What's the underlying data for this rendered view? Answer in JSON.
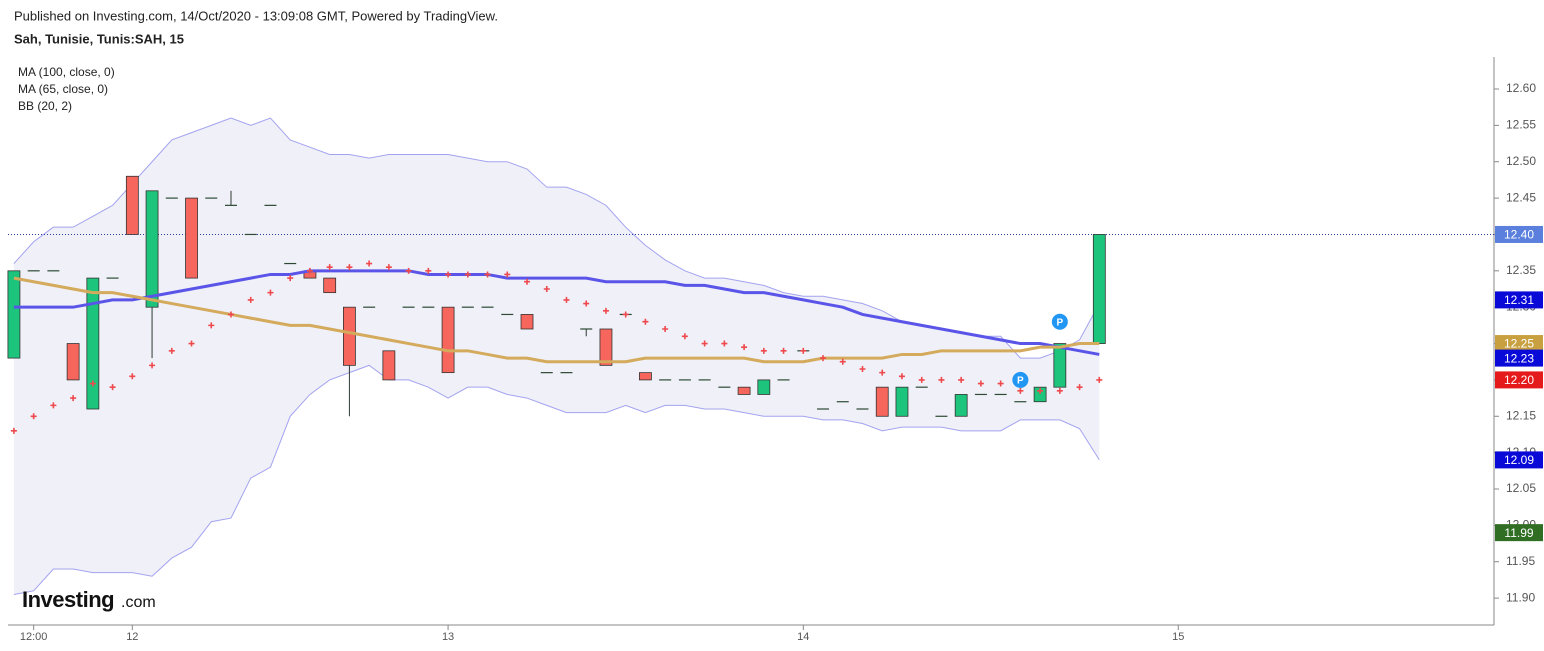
{
  "header": {
    "published": "Published on Investing.com, 14/Oct/2020 - 13:09:08 GMT, Powered by TradingView.",
    "symbol": "Sah, Tunisie, Tunis:SAH, 15"
  },
  "logo": {
    "brand": "Investing",
    "suffix": ".com"
  },
  "chart_data": {
    "type": "candlestick",
    "xlim": [
      -0.3,
      75.0
    ],
    "xticks": [
      {
        "value": 1,
        "label": "12:00"
      },
      {
        "value": 6,
        "label": "12"
      },
      {
        "value": 22,
        "label": "13"
      },
      {
        "value": 40,
        "label": "14"
      },
      {
        "value": 59,
        "label": "15"
      }
    ],
    "ylim": [
      11.863,
      12.644
    ],
    "yticks": [
      {
        "value": 11.9,
        "label": "11.90"
      },
      11.95,
      {
        "value": 12.0,
        "label": "12.00"
      },
      12.05,
      {
        "value": 12.1,
        "label": "12.10"
      },
      12.15,
      {
        "value": 12.2,
        "label": "12.20"
      },
      12.25,
      {
        "value": 12.3,
        "label": "12.30"
      },
      12.35,
      {
        "value": 12.4,
        "label": "12.40"
      },
      12.45,
      {
        "value": 12.5,
        "label": "12.50"
      },
      12.55,
      {
        "value": 12.6,
        "label": "12.60"
      }
    ],
    "candles": {
      "up_color": "#1dc47c",
      "down_color": "#f7665c",
      "flat_color": "#2c4a34",
      "open": [
        12.23,
        12.35,
        12.35,
        12.25,
        12.16,
        12.34,
        12.48,
        12.3,
        12.45,
        12.45,
        12.45,
        12.44,
        12.4,
        12.44,
        12.36,
        12.35,
        12.34,
        12.3,
        12.3,
        12.24,
        12.3,
        12.3,
        12.3,
        12.3,
        12.3,
        12.29,
        12.29,
        12.21,
        12.21,
        12.27,
        12.27,
        12.29,
        12.21,
        12.2,
        12.2,
        12.2,
        12.19,
        12.19,
        12.18,
        12.2,
        12.24,
        12.16,
        12.17,
        12.16,
        12.19,
        12.15,
        12.19,
        12.15,
        12.15,
        12.18,
        12.18,
        12.17,
        12.17,
        12.19,
        12.25,
        12.25
      ],
      "high": [
        12.35,
        12.35,
        12.35,
        12.25,
        12.34,
        12.34,
        12.48,
        12.46,
        12.45,
        12.45,
        12.45,
        12.46,
        12.4,
        12.44,
        12.36,
        12.35,
        12.34,
        12.3,
        12.3,
        12.24,
        12.3,
        12.3,
        12.3,
        12.3,
        12.3,
        12.29,
        12.29,
        12.21,
        12.21,
        12.27,
        12.27,
        12.29,
        12.21,
        12.2,
        12.2,
        12.2,
        12.19,
        12.19,
        12.2,
        12.2,
        12.24,
        12.16,
        12.17,
        12.16,
        12.19,
        12.19,
        12.19,
        12.15,
        12.18,
        12.18,
        12.18,
        12.17,
        12.19,
        12.25,
        12.25,
        12.4
      ],
      "low": [
        12.23,
        12.35,
        12.35,
        12.2,
        12.16,
        12.34,
        12.4,
        12.23,
        12.45,
        12.34,
        12.45,
        12.44,
        12.4,
        12.44,
        12.36,
        12.34,
        12.32,
        12.15,
        12.3,
        12.2,
        12.3,
        12.3,
        12.21,
        12.3,
        12.3,
        12.29,
        12.27,
        12.21,
        12.21,
        12.26,
        12.22,
        12.29,
        12.2,
        12.2,
        12.2,
        12.2,
        12.19,
        12.18,
        12.18,
        12.2,
        12.24,
        12.16,
        12.17,
        12.16,
        12.15,
        12.15,
        12.19,
        12.15,
        12.15,
        12.18,
        12.18,
        12.17,
        12.17,
        12.19,
        12.25,
        12.25
      ],
      "close": [
        12.35,
        12.35,
        12.35,
        12.2,
        12.34,
        12.34,
        12.4,
        12.46,
        12.45,
        12.34,
        12.45,
        12.44,
        12.4,
        12.44,
        12.36,
        12.34,
        12.32,
        12.22,
        12.3,
        12.2,
        12.3,
        12.3,
        12.21,
        12.3,
        12.3,
        12.29,
        12.27,
        12.21,
        12.21,
        12.27,
        12.22,
        12.29,
        12.2,
        12.2,
        12.2,
        12.2,
        12.19,
        12.18,
        12.2,
        12.2,
        12.24,
        12.16,
        12.17,
        12.16,
        12.15,
        12.19,
        12.19,
        12.15,
        12.18,
        12.18,
        12.18,
        12.17,
        12.19,
        12.25,
        12.25,
        12.4
      ]
    },
    "indicators": [
      {
        "name": "MA (100, close, 0)",
        "color": "#5a55e8",
        "values": [
          12.3,
          12.3,
          12.3,
          12.3,
          12.305,
          12.31,
          12.31,
          12.315,
          12.32,
          12.325,
          12.33,
          12.335,
          12.34,
          12.345,
          12.345,
          12.35,
          12.35,
          12.35,
          12.35,
          12.35,
          12.35,
          12.345,
          12.345,
          12.345,
          12.345,
          12.34,
          12.34,
          12.34,
          12.34,
          12.34,
          12.335,
          12.335,
          12.335,
          12.335,
          12.33,
          12.33,
          12.325,
          12.32,
          12.32,
          12.315,
          12.31,
          12.305,
          12.3,
          12.29,
          12.285,
          12.28,
          12.275,
          12.27,
          12.265,
          12.26,
          12.255,
          12.25,
          12.25,
          12.245,
          12.24,
          12.235
        ]
      },
      {
        "name": "MA (65, close, 0)",
        "color": "#d4aa5c",
        "values": [
          12.34,
          12.335,
          12.33,
          12.325,
          12.32,
          12.32,
          12.315,
          12.31,
          12.305,
          12.3,
          12.295,
          12.29,
          12.285,
          12.28,
          12.275,
          12.275,
          12.27,
          12.265,
          12.26,
          12.255,
          12.25,
          12.245,
          12.24,
          12.24,
          12.235,
          12.23,
          12.23,
          12.225,
          12.225,
          12.225,
          12.225,
          12.225,
          12.23,
          12.23,
          12.23,
          12.23,
          12.23,
          12.23,
          12.225,
          12.225,
          12.225,
          12.23,
          12.23,
          12.23,
          12.23,
          12.235,
          12.235,
          12.24,
          12.24,
          12.24,
          12.24,
          12.24,
          12.245,
          12.245,
          12.25,
          12.25
        ]
      },
      {
        "name": "BB (20, 2)",
        "color": "#a3a3f0",
        "fill": "#f0f0f8",
        "upper": [
          12.36,
          12.39,
          12.41,
          12.41,
          12.425,
          12.44,
          12.47,
          12.5,
          12.53,
          12.54,
          12.55,
          12.56,
          12.55,
          12.56,
          12.53,
          12.52,
          12.51,
          12.51,
          12.505,
          12.51,
          12.51,
          12.51,
          12.51,
          12.505,
          12.5,
          12.5,
          12.49,
          12.465,
          12.465,
          12.455,
          12.44,
          12.41,
          12.385,
          12.365,
          12.35,
          12.34,
          12.34,
          12.335,
          12.33,
          12.32,
          12.315,
          12.315,
          12.31,
          12.305,
          12.295,
          12.28,
          12.275,
          12.27,
          12.265,
          12.26,
          12.26,
          12.23,
          12.23,
          12.24,
          12.255,
          12.305
        ],
        "lower": [
          11.905,
          11.91,
          11.94,
          11.94,
          11.935,
          11.935,
          11.935,
          11.93,
          11.955,
          11.97,
          12.005,
          12.01,
          12.065,
          12.08,
          12.15,
          12.18,
          12.2,
          12.21,
          12.22,
          12.2,
          12.2,
          12.19,
          12.175,
          12.19,
          12.19,
          12.18,
          12.175,
          12.165,
          12.155,
          12.155,
          12.155,
          12.165,
          12.155,
          12.165,
          12.165,
          12.16,
          12.16,
          12.155,
          12.15,
          12.15,
          12.15,
          12.145,
          12.145,
          12.14,
          12.13,
          12.135,
          12.135,
          12.135,
          12.13,
          12.13,
          12.13,
          12.145,
          12.145,
          12.145,
          12.133,
          12.09
        ]
      }
    ],
    "sar": {
      "color": "#ee4a4d",
      "values": [
        12.13,
        12.15,
        12.165,
        12.175,
        12.195,
        12.19,
        12.205,
        12.22,
        12.24,
        12.25,
        12.275,
        12.29,
        12.31,
        12.32,
        12.34,
        12.35,
        12.355,
        12.355,
        12.36,
        12.355,
        12.35,
        12.35,
        12.345,
        12.345,
        12.345,
        12.345,
        12.335,
        12.325,
        12.31,
        12.305,
        12.295,
        12.29,
        12.28,
        12.27,
        12.26,
        12.25,
        12.25,
        12.245,
        12.24,
        12.24,
        12.24,
        12.23,
        12.225,
        12.215,
        12.21,
        12.205,
        12.2,
        12.2,
        12.2,
        12.195,
        12.195,
        12.185,
        12.185,
        12.185,
        12.19,
        12.2
      ]
    },
    "markers": [
      {
        "label": "P",
        "x": 51,
        "y": 12.2
      },
      {
        "label": "P",
        "x": 53,
        "y": 12.28
      }
    ],
    "price_tags": [
      {
        "value": 12.4,
        "label": "12.40",
        "color": "#5a7fdc"
      },
      {
        "value": 12.31,
        "label": "12.31",
        "color": "#0a0ad8"
      },
      {
        "value": 12.25,
        "label": "12.25",
        "color": "#c9a040"
      },
      {
        "value": 12.23,
        "label": "12.23",
        "color": "#0a0ad8"
      },
      {
        "value": 12.2,
        "label": "12.20",
        "color": "#e51b1b"
      },
      {
        "value": 12.09,
        "label": "12.09",
        "color": "#0a0ad8"
      },
      {
        "value": 11.99,
        "label": "11.99",
        "color": "#2f6e23"
      }
    ],
    "last_price_line": true
  }
}
